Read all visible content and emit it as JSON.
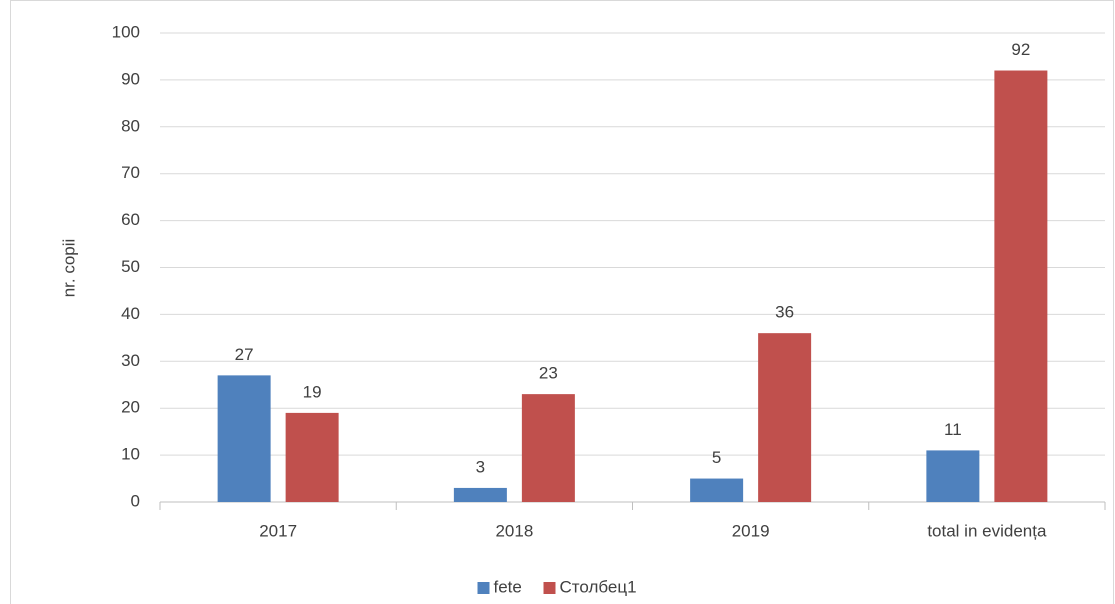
{
  "chart_data": {
    "type": "bar",
    "y_label": "nr. copii",
    "categories": [
      "2017",
      "2018",
      "2019",
      "total in evidența"
    ],
    "series": [
      {
        "name": "fete",
        "color": "#4f81bd",
        "values": [
          27,
          3,
          5,
          11
        ]
      },
      {
        "name": "Столбец1",
        "color": "#c0504d",
        "values": [
          19,
          23,
          36,
          92
        ]
      }
    ],
    "ylim": [
      0,
      100
    ],
    "yticks": [
      0,
      10,
      20,
      30,
      40,
      50,
      60,
      70,
      80,
      90,
      100
    ],
    "grid": true,
    "legend": "bottom"
  }
}
